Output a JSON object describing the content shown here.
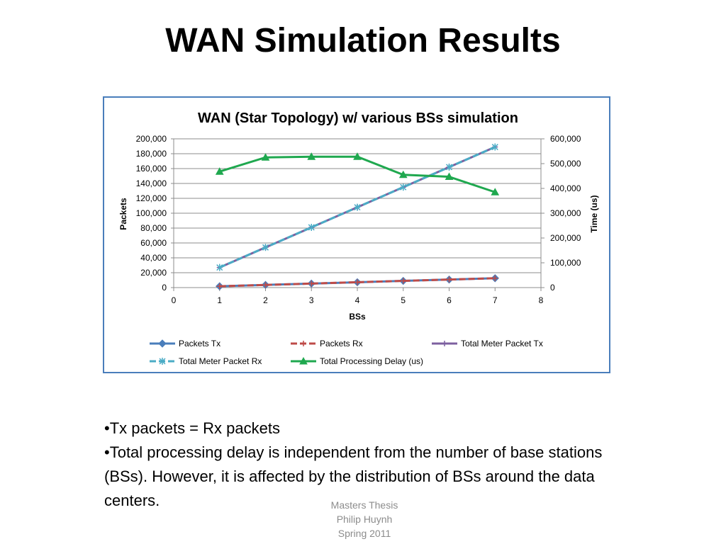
{
  "slide": {
    "title": "WAN Simulation Results",
    "bullets": [
      "•Tx packets = Rx packets",
      "•Total processing delay is independent from the number of base stations (BSs). However, it is affected by the distribution of BSs around the data centers."
    ],
    "footer": [
      "Masters Thesis",
      "Philip Huynh",
      "Spring 2011"
    ]
  },
  "chart_data": {
    "type": "line",
    "title": "WAN (Star Topology) w/ various BSs simulation",
    "xlabel": "BSs",
    "ylabel": "Packets",
    "y2label": "Time (us)",
    "xlim": [
      0,
      8
    ],
    "ylim": [
      0,
      200000
    ],
    "y2lim": [
      0,
      600000
    ],
    "x_ticks": [
      "0",
      "1",
      "2",
      "3",
      "4",
      "5",
      "6",
      "7",
      "8"
    ],
    "y_ticks": [
      "0",
      "20,000",
      "40,000",
      "60,000",
      "80,000",
      "100,000",
      "120,000",
      "140,000",
      "160,000",
      "180,000",
      "200,000"
    ],
    "y2_ticks": [
      "0",
      "100,000",
      "200,000",
      "300,000",
      "400,000",
      "500,000",
      "600,000"
    ],
    "grid": true,
    "legend_position": "bottom",
    "x": [
      1,
      2,
      3,
      4,
      5,
      6,
      7
    ],
    "series": [
      {
        "name": "Packets Tx",
        "axis": "left",
        "color": "#4a7ebb",
        "marker": "diamond",
        "dash": "solid",
        "values": [
          1800,
          3600,
          5400,
          7200,
          9000,
          10800,
          12600
        ]
      },
      {
        "name": "Packets Rx",
        "axis": "left",
        "color": "#be4b48",
        "marker": "plus",
        "dash": "dashed",
        "values": [
          1800,
          3600,
          5400,
          7200,
          9000,
          10800,
          12600
        ]
      },
      {
        "name": "Total Meter Packet Tx",
        "axis": "left",
        "color": "#7d60a0",
        "marker": "plus",
        "dash": "solid",
        "values": [
          27000,
          54000,
          81000,
          108000,
          135000,
          162000,
          189000
        ]
      },
      {
        "name": "Total Meter Packet Rx",
        "axis": "left",
        "color": "#4bacc6",
        "marker": "star",
        "dash": "dashed",
        "values": [
          27000,
          54000,
          81000,
          108000,
          135000,
          162000,
          189000
        ]
      },
      {
        "name": "Total Processing Delay (us)",
        "axis": "right",
        "color": "#1fa84f",
        "marker": "triangle",
        "dash": "solid",
        "values": [
          468000,
          525000,
          528000,
          528000,
          455000,
          447000,
          385000
        ]
      }
    ]
  }
}
